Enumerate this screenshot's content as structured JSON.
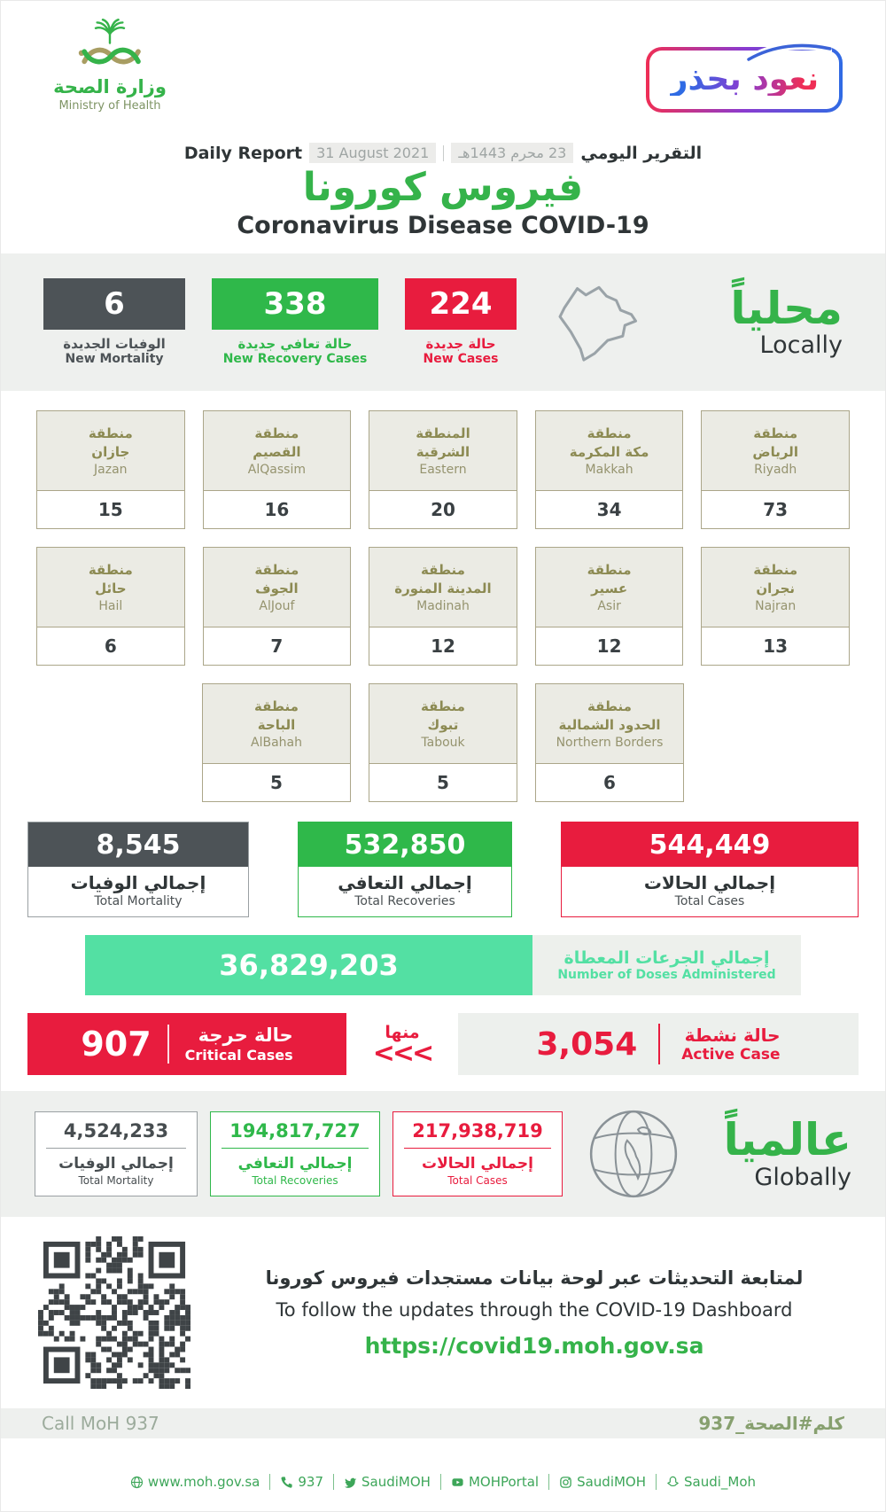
{
  "colors": {
    "green": "#35b34a",
    "dark": "#4d5357",
    "red": "#e81c3e",
    "mint": "#53e0a3",
    "band": "#eef0ee",
    "olive": "#8c8a52"
  },
  "header": {
    "logo": {
      "arabic": "وزارة الصحة",
      "english": "Ministry of Health"
    },
    "badge": "نعود بحذر",
    "report_line": {
      "daily_report": "Daily Report",
      "date_en": "31 August 2021",
      "date_hijri": "23 محرم 1443هـ",
      "daily_report_ar": "التقرير اليومي"
    },
    "title_ar": "فيروس كورونا",
    "title_en": "Coronavirus Disease COVID-19"
  },
  "locally": {
    "heading_ar": "محلياً",
    "heading_en": "Locally",
    "stats": [
      {
        "value": "6",
        "label_ar": "الوفيات الجديدة",
        "label_en": "New Mortality"
      },
      {
        "value": "338",
        "label_ar": "حالة تعافي جديدة",
        "label_en": "New Recovery Cases"
      },
      {
        "value": "224",
        "label_ar": "حالة جديدة",
        "label_en": "New Cases"
      }
    ]
  },
  "regions": {
    "row1": [
      {
        "ar1": "منطقة",
        "ar2": "جازان",
        "en": "Jazan",
        "value": "15"
      },
      {
        "ar1": "منطقة",
        "ar2": "القصيم",
        "en": "AlQassim",
        "value": "16"
      },
      {
        "ar1": "المنطقة",
        "ar2": "الشرقية",
        "en": "Eastern",
        "value": "20"
      },
      {
        "ar1": "منطقة",
        "ar2": "مكة المكرمة",
        "en": "Makkah",
        "value": "34"
      },
      {
        "ar1": "منطقة",
        "ar2": "الرياض",
        "en": "Riyadh",
        "value": "73"
      }
    ],
    "row2": [
      {
        "ar1": "منطقة",
        "ar2": "حائل",
        "en": "Hail",
        "value": "6"
      },
      {
        "ar1": "منطقة",
        "ar2": "الجوف",
        "en": "AlJouf",
        "value": "7"
      },
      {
        "ar1": "منطقة",
        "ar2": "المدينة المنورة",
        "en": "Madinah",
        "value": "12"
      },
      {
        "ar1": "منطقة",
        "ar2": "عسير",
        "en": "Asir",
        "value": "12"
      },
      {
        "ar1": "منطقة",
        "ar2": "نجران",
        "en": "Najran",
        "value": "13"
      }
    ],
    "row3": [
      {
        "ar1": "منطقة",
        "ar2": "الباحة",
        "en": "AlBahah",
        "value": "5"
      },
      {
        "ar1": "منطقة",
        "ar2": "تبوك",
        "en": "Tabouk",
        "value": "5"
      },
      {
        "ar1": "منطقة",
        "ar2": "الحدود الشمالية",
        "en": "Northern Borders",
        "value": "6"
      }
    ]
  },
  "totals": [
    {
      "value": "8,545",
      "label_ar": "إجمالي الوفيات",
      "label_en": "Total Mortality"
    },
    {
      "value": "532,850",
      "label_ar": "إجمالي التعافي",
      "label_en": "Total Recoveries"
    },
    {
      "value": "544,449",
      "label_ar": "إجمالي الحالات",
      "label_en": "Total Cases"
    }
  ],
  "doses": {
    "value": "36,829,203",
    "label_ar": "إجمالي الجرعات المعطاة",
    "label_en": "Number of Doses Administered"
  },
  "critical": {
    "value": "907",
    "label_ar": "حالة حرجة",
    "label_en": "Critical Cases"
  },
  "minha": {
    "text": "منها",
    "arrows": "<<<"
  },
  "active": {
    "value": "3,054",
    "label_ar": "حالة نشطة",
    "label_en": "Active Case"
  },
  "globally": {
    "heading_ar": "عالمياً",
    "heading_en": "Globally",
    "stats": [
      {
        "value": "4,524,233",
        "label_ar": "إجمالي الوفيات",
        "label_en": "Total Mortality"
      },
      {
        "value": "194,817,727",
        "label_ar": "إجمالي التعافي",
        "label_en": "Total Recoveries"
      },
      {
        "value": "217,938,719",
        "label_ar": "إجمالي الحالات",
        "label_en": "Total Cases"
      }
    ]
  },
  "dashboard": {
    "line_ar": "لمتابعة التحديثات عبر لوحة بيانات مستجدات فيروس كورونا",
    "line_en": "To follow the updates through the COVID-19 Dashboard",
    "url": "https://covid19.moh.gov.sa"
  },
  "footer": {
    "call": "Call MoH 937",
    "hashtag": "كلم#الصحة_937",
    "links": [
      {
        "icon": "globe-icon",
        "text": "www.moh.gov.sa"
      },
      {
        "icon": "phone-icon",
        "text": "937"
      },
      {
        "icon": "twitter-icon",
        "text": "SaudiMOH"
      },
      {
        "icon": "youtube-icon",
        "text": "MOHPortal"
      },
      {
        "icon": "instagram-icon",
        "text": "SaudiMOH"
      },
      {
        "icon": "snapchat-icon",
        "text": "Saudi_Moh"
      }
    ]
  }
}
